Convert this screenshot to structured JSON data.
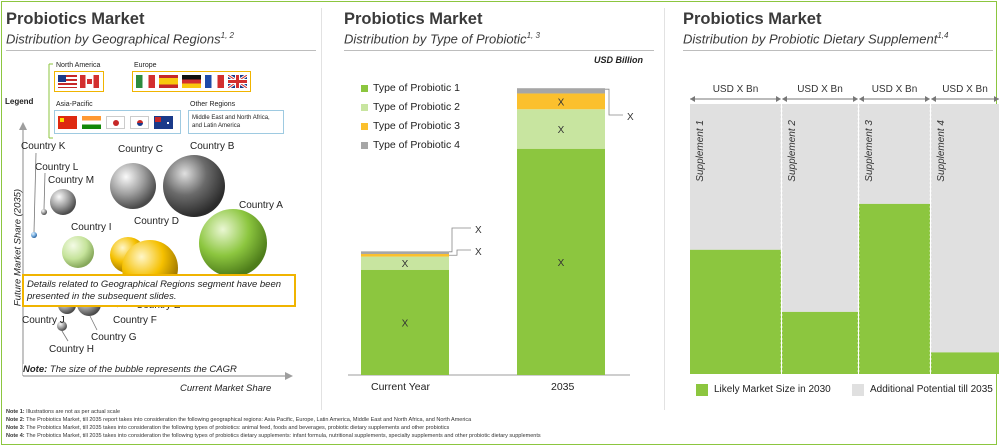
{
  "colors": {
    "green": "#8cc63f",
    "light_green": "#c8e5a0",
    "yellow": "#fbc02d",
    "grey": "#a6a6a6",
    "track": "#e0e0e0"
  },
  "panel1": {
    "title": "Probiotics Market",
    "subtitle": "Distribution by Geographical Regions",
    "subtitle_sup": "1, 2",
    "legend_label": "Legend",
    "regions": [
      {
        "name": "North America",
        "flags": [
          "us-flag",
          "ca-flag"
        ]
      },
      {
        "name": "Europe",
        "flags": [
          "it-flag",
          "es-flag",
          "de-flag",
          "fr-flag",
          "uk-flag"
        ]
      },
      {
        "name": "Asia-Pacific",
        "flags": [
          "cn-flag",
          "in-flag",
          "jp-flag",
          "kr-flag",
          "au-flag"
        ]
      },
      {
        "name": "Other Regions",
        "desc": "Middle East and North Africa, and Latin America"
      }
    ],
    "y_axis_label": "Future Market Share (2035)",
    "x_axis_label": "Current Market Share",
    "countries": [
      "Country A",
      "Country B",
      "Country C",
      "Country D",
      "Country E",
      "Country F",
      "Country G",
      "Country H",
      "Country I",
      "Country J",
      "Country K",
      "Country L",
      "Country M"
    ],
    "callout": "Details related to Geographical Regions segment have been presented in the subsequent slides.",
    "note_label": "Note:",
    "note_text": "The size of the bubble represents the CAGR"
  },
  "chart_data": [
    {
      "type": "bar",
      "title": "Probiotics Market",
      "subtitle": "Distribution by Type of Probiotic",
      "subtitle_sup": "1, 3",
      "unit": "USD Billion",
      "categories": [
        "Current Year",
        "2035"
      ],
      "series": [
        {
          "name": "Type of Probiotic 1",
          "values": [
            40,
            86
          ]
        },
        {
          "name": "Type of Probiotic 2",
          "values": [
            5,
            15
          ]
        },
        {
          "name": "Type of Probiotic 3",
          "values": [
            1,
            6
          ]
        },
        {
          "name": "Type of Probiotic 4",
          "values": [
            1,
            2
          ]
        }
      ],
      "value_label": "X",
      "ylim": [
        0,
        122
      ]
    },
    {
      "type": "bar",
      "title": "Probiotics Market",
      "subtitle": "Distribution by Probiotic Dietary Supplement",
      "subtitle_sup": "1,4",
      "categories": [
        "Supplement 1",
        "Supplement 2",
        "Supplement 3",
        "Supplement 4"
      ],
      "header_label": "USD X Bn",
      "series": [
        {
          "name": "Likely Market Size in 2030",
          "values": [
            46,
            23,
            63,
            8
          ]
        },
        {
          "name": "Additional Potential till 2035",
          "values": [
            54,
            77,
            37,
            92
          ]
        }
      ],
      "ylim": [
        0,
        100
      ]
    }
  ],
  "notes": [
    {
      "label": "Note 1:",
      "text": "Illustrations are not as per actual scale"
    },
    {
      "label": "Note 2:",
      "text": "The Probiotics Market, till 2035 report takes into consideration the following geographical regions: Asia Pacific, Europe, Latin America, Middle East and North Africa, and North America"
    },
    {
      "label": "Note 3:",
      "text": "The Probiotics Market, till 2035 takes into consideration the following types of probiotics: animal feed, foods and beverages, probiotic dietary supplements and other probiotics"
    },
    {
      "label": "Note 4:",
      "text": "The Probiotics Market, till 2035 takes into consideration the following types of probiotics dietary supplements: infant formula, nutritional supplements, specialty supplements and other probiotic dietary supplements"
    }
  ]
}
